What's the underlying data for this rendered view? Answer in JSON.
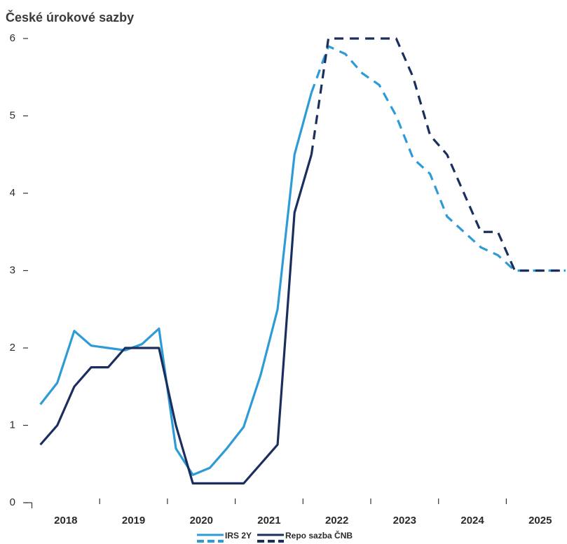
{
  "chart_data": {
    "type": "line",
    "title": "České úrokové sazby",
    "x": [
      2018.125,
      2018.375,
      2018.625,
      2018.875,
      2019.125,
      2019.375,
      2019.625,
      2019.875,
      2020.125,
      2020.375,
      2020.625,
      2020.875,
      2021.125,
      2021.375,
      2021.625,
      2021.875,
      2022.125,
      2022.375,
      2022.625,
      2022.875,
      2023.125,
      2023.375,
      2023.625,
      2023.875,
      2024.125,
      2024.375,
      2024.625,
      2024.875,
      2025.125,
      2025.375,
      2025.625,
      2025.875
    ],
    "series": [
      {
        "name": "IRS 2Y",
        "color": "#2e9bd6",
        "dashed_from": 16,
        "values": [
          1.27,
          1.55,
          2.22,
          2.03,
          2.0,
          1.97,
          2.05,
          2.25,
          0.7,
          0.36,
          0.45,
          0.7,
          0.98,
          1.65,
          2.5,
          4.5,
          5.3,
          5.9,
          5.8,
          5.55,
          5.4,
          5.0,
          4.45,
          4.25,
          3.7,
          3.5,
          3.3,
          3.2,
          3.0,
          3.0,
          3.0,
          3.0
        ]
      },
      {
        "name": "Repo sazba ČNB",
        "color": "#1b2f5e",
        "dashed_from": 16,
        "values": [
          0.75,
          1.0,
          1.5,
          1.75,
          1.75,
          2.0,
          2.0,
          2.0,
          1.0,
          0.25,
          0.25,
          0.25,
          0.25,
          0.5,
          0.75,
          3.75,
          4.5,
          6.0,
          6.0,
          6.0,
          6.0,
          6.0,
          5.5,
          4.75,
          4.5,
          4.0,
          3.5,
          3.5,
          3.0,
          3.0,
          3.0,
          3.0
        ]
      }
    ],
    "xlim": [
      2018,
      2026
    ],
    "xticks": [
      {
        "value": 2018.5,
        "label": "2018"
      },
      {
        "value": 2019.5,
        "label": "2019"
      },
      {
        "value": 2020.5,
        "label": "2020"
      },
      {
        "value": 2021.5,
        "label": "2021"
      },
      {
        "value": 2022.5,
        "label": "2022"
      },
      {
        "value": 2023.5,
        "label": "2023"
      },
      {
        "value": 2024.5,
        "label": "2024"
      },
      {
        "value": 2025.5,
        "label": "2025"
      }
    ],
    "ylim": [
      0,
      6
    ],
    "yticks": [
      0,
      1,
      2,
      3,
      4,
      5,
      6
    ],
    "grid": false,
    "legend": "bottom"
  }
}
